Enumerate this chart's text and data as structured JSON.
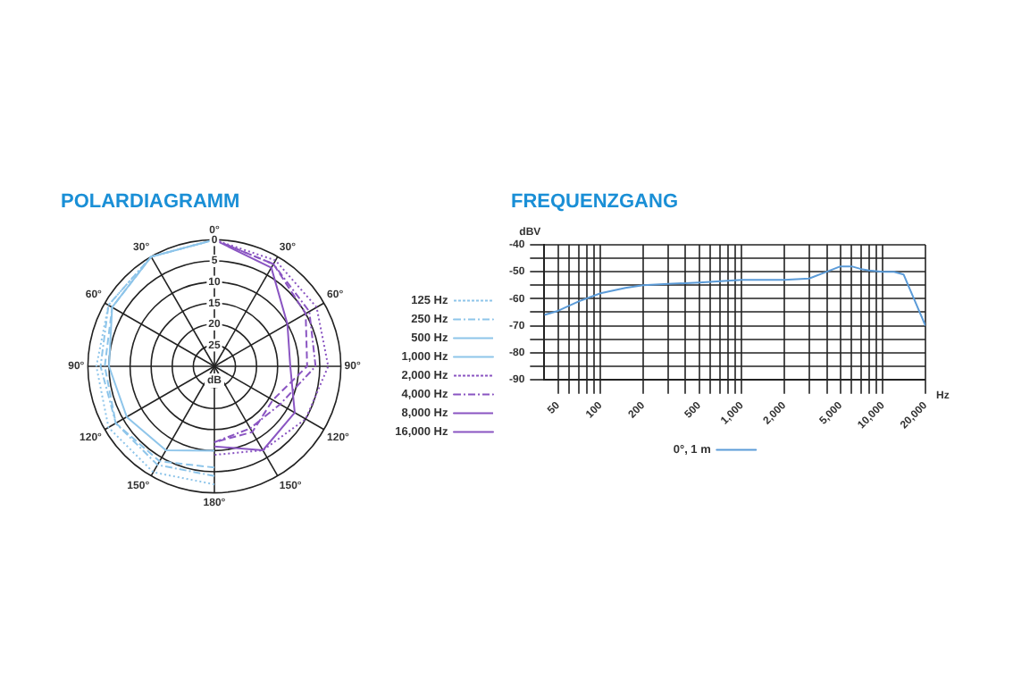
{
  "chart_data": [
    {
      "type": "radar",
      "title": "POLARDIAGRAMM",
      "ylabel": "dB",
      "categories": [
        "0°",
        "30°",
        "60°",
        "90°",
        "120°",
        "150°",
        "180°",
        "150°",
        "120°",
        "90°",
        "60°",
        "30°"
      ],
      "ylim": [
        30,
        0
      ],
      "yticks": [
        0,
        5,
        10,
        15,
        20,
        25
      ],
      "legend": "right",
      "grid": true,
      "marker": "none",
      "series": [
        {
          "name": "125 Hz",
          "color": "#8ec5ea",
          "line_style": "dotted",
          "values": [
            0,
            null,
            null,
            null,
            null,
            null,
            2,
            1,
            1,
            2,
            1,
            0
          ]
        },
        {
          "name": "250 Hz",
          "color": "#8ec5ea",
          "line_style": "dashdot",
          "values": [
            0,
            null,
            null,
            null,
            null,
            null,
            4,
            3,
            3,
            3,
            1,
            0
          ]
        },
        {
          "name": "500 Hz",
          "color": "#8ec5ea",
          "line_style": "dashed",
          "values": [
            0,
            null,
            null,
            null,
            null,
            null,
            6,
            4,
            3,
            4,
            2,
            0
          ]
        },
        {
          "name": "1,000 Hz",
          "color": "#8ec5ea",
          "line_style": "solid",
          "values": [
            0,
            null,
            null,
            null,
            null,
            null,
            10,
            7,
            6,
            5,
            2,
            0
          ]
        },
        {
          "name": "2,000 Hz",
          "color": "#8a55c2",
          "line_style": "dotted",
          "values": [
            0,
            1,
            2,
            3,
            5,
            7,
            9,
            null,
            null,
            null,
            null,
            null
          ]
        },
        {
          "name": "4,000 Hz",
          "color": "#8a55c2",
          "line_style": "dashdot",
          "values": [
            0,
            2,
            4,
            6,
            12,
            13,
            12,
            null,
            null,
            null,
            null,
            null
          ]
        },
        {
          "name": "8,000 Hz",
          "color": "#8a55c2",
          "line_style": "dashed",
          "values": [
            0,
            2,
            5,
            8,
            14,
            12,
            12,
            null,
            null,
            null,
            null,
            null
          ]
        },
        {
          "name": "16,000 Hz",
          "color": "#8a55c2",
          "line_style": "solid",
          "values": [
            0,
            3,
            10,
            12,
            8,
            7,
            11,
            null,
            null,
            null,
            null,
            null
          ]
        }
      ]
    },
    {
      "type": "line",
      "title": "FREQUENZGANG",
      "xlabel": "Hz",
      "ylabel": "dBV",
      "log": "x",
      "grid": true,
      "legend": "bottom",
      "marker": "none",
      "xlim": [
        40,
        20000
      ],
      "xticks": [
        {
          "value": 50,
          "label": "50"
        },
        {
          "value": 60,
          "label": null
        },
        {
          "value": 70,
          "label": null
        },
        {
          "value": 80,
          "label": null
        },
        {
          "value": 90,
          "label": null
        },
        {
          "value": 100,
          "label": "100"
        },
        {
          "value": 200,
          "label": "200"
        },
        {
          "value": 300,
          "label": null
        },
        {
          "value": 400,
          "label": null
        },
        {
          "value": 500,
          "label": "500"
        },
        {
          "value": 600,
          "label": null
        },
        {
          "value": 700,
          "label": null
        },
        {
          "value": 800,
          "label": null
        },
        {
          "value": 900,
          "label": null
        },
        {
          "value": 1000,
          "label": "1,000"
        },
        {
          "value": 2000,
          "label": "2,000"
        },
        {
          "value": 3000,
          "label": null
        },
        {
          "value": 4000,
          "label": null
        },
        {
          "value": 5000,
          "label": "5,000"
        },
        {
          "value": 6000,
          "label": null
        },
        {
          "value": 7000,
          "label": null
        },
        {
          "value": 8000,
          "label": null
        },
        {
          "value": 9000,
          "label": null
        },
        {
          "value": 10000,
          "label": "10,000"
        },
        {
          "value": 20000,
          "label": "20,000"
        }
      ],
      "ylim": [
        -90,
        -40
      ],
      "yticks": [
        -40,
        {
          "value": -45,
          "label": null
        },
        -50,
        {
          "value": -55,
          "label": null
        },
        -60,
        {
          "value": -65,
          "label": null
        },
        -70,
        {
          "value": -75,
          "label": null
        },
        -80,
        {
          "value": -85,
          "label": null
        },
        -90
      ],
      "series": [
        {
          "name": "0°, 1 m",
          "color": "#5b9bd8",
          "line_style": "solid",
          "x": [
            40,
            50,
            70,
            100,
            150,
            200,
            300,
            500,
            1000,
            2000,
            3000,
            4000,
            5000,
            6000,
            7000,
            8000,
            10000,
            12000,
            14000,
            20000
          ],
          "values": [
            -66,
            -64.5,
            -61,
            -58,
            -56,
            -55,
            -54.5,
            -54,
            -53,
            -53,
            -52.5,
            -50,
            -48,
            -48,
            -49,
            -49.5,
            -50,
            -50,
            -51,
            -70
          ]
        }
      ]
    }
  ]
}
